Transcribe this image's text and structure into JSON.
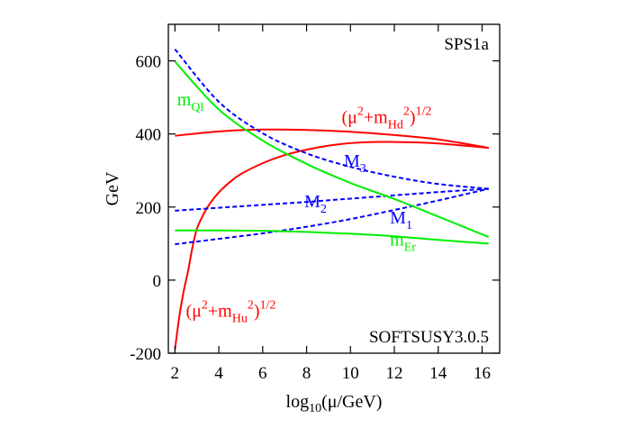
{
  "chart_data": {
    "type": "line",
    "corner_labels": {
      "top_right": "SPS1a",
      "bottom_right": "SOFTSUSY3.0.5"
    },
    "xlabel": {
      "pre": "log",
      "sub": "10",
      "post": "(μ/GeV)"
    },
    "ylabel": "GeV",
    "xlim": [
      1.7,
      16.8
    ],
    "ylim": [
      -200,
      700
    ],
    "xticks": [
      2,
      4,
      6,
      8,
      10,
      12,
      14,
      16
    ],
    "yticks": [
      -200,
      0,
      200,
      400,
      600
    ],
    "grid": false,
    "legend": "none",
    "series": [
      {
        "id": "mHd",
        "color": "#ff0000",
        "dash": "solid",
        "x": [
          2,
          4,
          6,
          8,
          10,
          12,
          14,
          16.3
        ],
        "y": [
          395,
          407,
          412,
          411,
          406,
          397,
          385,
          362
        ]
      },
      {
        "id": "mHu",
        "color": "#ff0000",
        "dash": "solid",
        "x": [
          2,
          2.2,
          2.4,
          2.6,
          2.8,
          3,
          3.3,
          3.6,
          4,
          4.5,
          5,
          6,
          7,
          8,
          9,
          10,
          11,
          12,
          13,
          14,
          15,
          16.3
        ],
        "y": [
          -190,
          -100,
          -30,
          25,
          90,
          140,
          180,
          210,
          240,
          268,
          290,
          320,
          342,
          357,
          368,
          375,
          378,
          378,
          377,
          374,
          369,
          362
        ]
      },
      {
        "id": "M3",
        "color": "#0000ff",
        "dash": "dashed",
        "x": [
          2,
          4,
          6,
          8,
          10,
          12,
          14,
          16.3
        ],
        "y": [
          632,
          488,
          402,
          347,
          310,
          283,
          263,
          250
        ]
      },
      {
        "id": "M2",
        "color": "#0000ff",
        "dash": "dashed",
        "x": [
          2,
          4,
          6,
          8,
          10,
          12,
          14,
          16.3
        ],
        "y": [
          190,
          198,
          206,
          214,
          223,
          232,
          241,
          250
        ]
      },
      {
        "id": "M1",
        "color": "#0000ff",
        "dash": "dashed",
        "x": [
          2,
          4,
          6,
          8,
          10,
          12,
          14,
          16.3
        ],
        "y": [
          98,
          113,
          128,
          146,
          167,
          192,
          218,
          250
        ]
      },
      {
        "id": "mQl",
        "color": "#00ee00",
        "dash": "solid",
        "x": [
          2,
          4,
          6,
          8,
          10,
          12,
          14,
          16.3
        ],
        "y": [
          598,
          467,
          382,
          318,
          266,
          222,
          174,
          118
        ]
      },
      {
        "id": "mEr",
        "color": "#00ee00",
        "dash": "solid",
        "x": [
          2,
          4,
          6,
          8,
          10,
          12,
          14,
          16.3
        ],
        "y": [
          136,
          136,
          135,
          132,
          127,
          120,
          110,
          100
        ]
      }
    ],
    "annotations": [
      {
        "id": "mQl",
        "color": "#00ee00",
        "x": 2.1,
        "y": 478,
        "parts": [
          [
            "m",
            ""
          ],
          [
            "Ql",
            "sub"
          ]
        ]
      },
      {
        "id": "mHd",
        "color": "#ff0000",
        "x": 9.6,
        "y": 430,
        "parts": [
          [
            "(μ",
            ""
          ],
          [
            "2",
            "sup"
          ],
          [
            "+m",
            ""
          ],
          [
            "Hd",
            "sub"
          ],
          [
            "2",
            "sup"
          ],
          [
            ")",
            ""
          ],
          [
            "1/2",
            "sup"
          ]
        ]
      },
      {
        "id": "M3",
        "color": "#0000ff",
        "x": 9.7,
        "y": 310,
        "parts": [
          [
            "M",
            ""
          ],
          [
            "3",
            "sub"
          ]
        ]
      },
      {
        "id": "M2",
        "color": "#0000ff",
        "x": 7.9,
        "y": 200,
        "parts": [
          [
            "M",
            ""
          ],
          [
            "2",
            "sub"
          ]
        ]
      },
      {
        "id": "M1",
        "color": "#0000ff",
        "x": 11.8,
        "y": 155,
        "parts": [
          [
            "M",
            ""
          ],
          [
            "1",
            "sub"
          ]
        ]
      },
      {
        "id": "mEr",
        "color": "#00ee00",
        "x": 11.8,
        "y": 95,
        "parts": [
          [
            "m",
            ""
          ],
          [
            "Er",
            "sub"
          ]
        ]
      },
      {
        "id": "mHu",
        "color": "#ff0000",
        "x": 2.5,
        "y": -100,
        "parts": [
          [
            "(μ",
            ""
          ],
          [
            "2",
            "sup"
          ],
          [
            "+m",
            ""
          ],
          [
            "Hu",
            "sub"
          ],
          [
            "2",
            "sup"
          ],
          [
            ")",
            ""
          ],
          [
            "1/2",
            "sup"
          ]
        ]
      }
    ]
  }
}
